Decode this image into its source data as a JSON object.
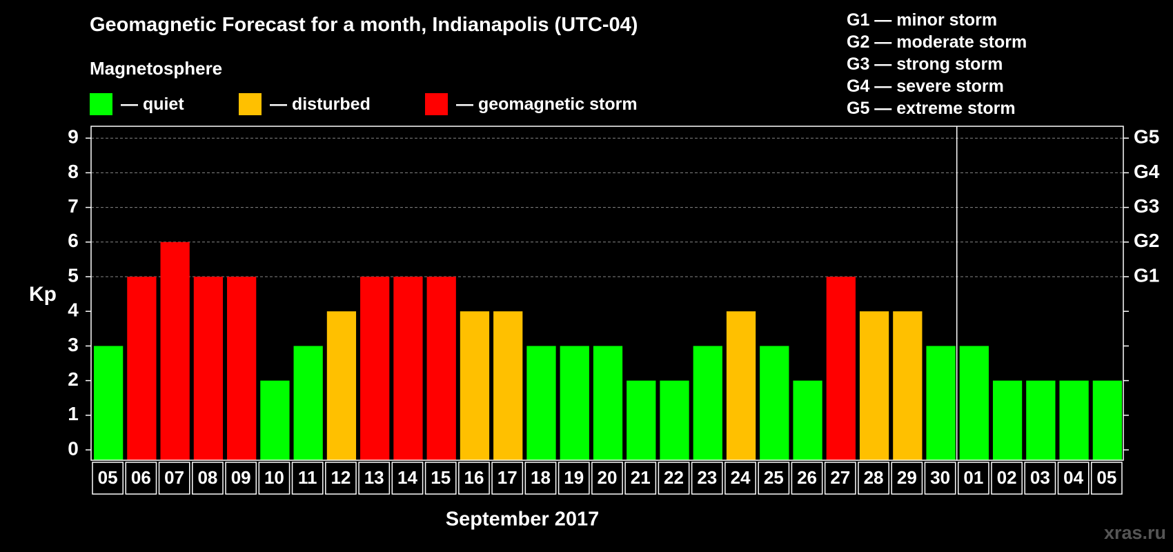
{
  "title": "Geomagnetic Forecast for a month, Indianapolis (UTC-04)",
  "legend": {
    "heading": "Magnetosphere",
    "items": [
      {
        "label": "— quiet",
        "color": "#00ff00"
      },
      {
        "label": "— disturbed",
        "color": "#ffc000"
      },
      {
        "label": "— geomagnetic storm",
        "color": "#ff0000"
      }
    ]
  },
  "gscale": [
    "G1 — minor storm",
    "G2 — moderate storm",
    "G3 — strong storm",
    "G4 — severe storm",
    "G5 — extreme storm"
  ],
  "watermark": "xras.ru",
  "chart_data": {
    "type": "bar",
    "ylabel": "Kp",
    "xlabel": "September 2017",
    "ylim": [
      0,
      9
    ],
    "yticks": [
      0,
      1,
      2,
      3,
      4,
      5,
      6,
      7,
      8,
      9
    ],
    "right_axis_labels": [
      {
        "value": 5,
        "label": "G1"
      },
      {
        "value": 6,
        "label": "G2"
      },
      {
        "value": 7,
        "label": "G3"
      },
      {
        "value": 8,
        "label": "G4"
      },
      {
        "value": 9,
        "label": "G5"
      }
    ],
    "grid": "dashed at Kp 5-9",
    "month_divider_after": "30",
    "categories": [
      "05",
      "06",
      "07",
      "08",
      "09",
      "10",
      "11",
      "12",
      "13",
      "14",
      "15",
      "16",
      "17",
      "18",
      "19",
      "20",
      "21",
      "22",
      "23",
      "24",
      "25",
      "26",
      "27",
      "28",
      "29",
      "30",
      "01",
      "02",
      "03",
      "04",
      "05"
    ],
    "values": [
      3,
      5,
      6,
      5,
      5,
      2,
      3,
      4,
      5,
      5,
      5,
      4,
      4,
      3,
      3,
      3,
      2,
      2,
      3,
      4,
      3,
      2,
      5,
      4,
      4,
      3,
      3,
      2,
      2,
      2,
      2
    ],
    "color_rule": {
      "quiet": "#00ff00",
      "disturbed": "#ffc000",
      "storm": "#ff0000"
    }
  }
}
